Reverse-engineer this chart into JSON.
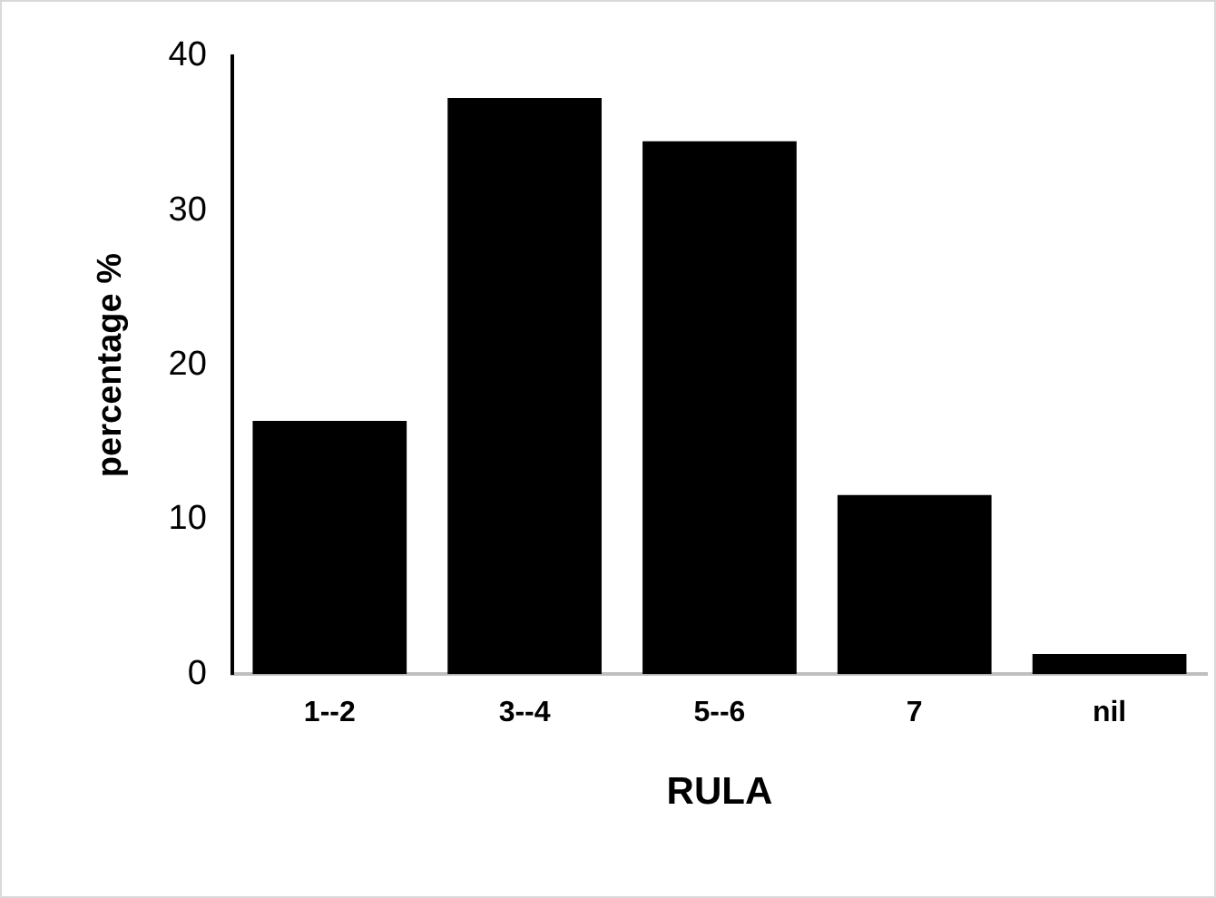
{
  "chart_data": {
    "type": "bar",
    "xlabel": "RULA",
    "ylabel": "percentage %",
    "categories": [
      "1--2",
      "3--4",
      "5--6",
      "7",
      "nil"
    ],
    "values": [
      16.4,
      37.3,
      34.5,
      11.6,
      1.3
    ],
    "color": "#000000",
    "ylim": [
      0,
      40
    ],
    "yticks": [
      0,
      10,
      20,
      30,
      40
    ],
    "grid": false,
    "legend": false
  }
}
